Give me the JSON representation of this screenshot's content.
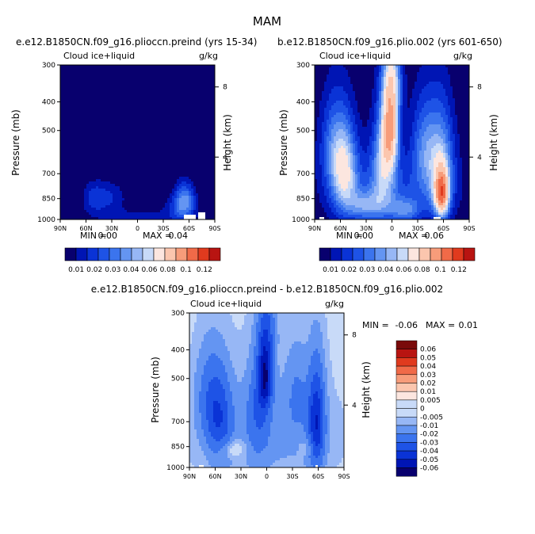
{
  "figure": {
    "title": "MAM"
  },
  "colors": {
    "palette": [
      "#08006e",
      "#0015b4",
      "#0a33d6",
      "#1e53e6",
      "#3b74ee",
      "#6495f2",
      "#97b7f5",
      "#c8daf8",
      "#fce6df",
      "#fbc6ae",
      "#f79c7a",
      "#f06a48",
      "#e03a1e",
      "#b81411",
      "#7a0a0a"
    ],
    "fill_missing": "#ffffff"
  },
  "chart_data": [
    {
      "type": "contour",
      "title": "e.e12.B1850CN.f09_g16.plioccn.preind (yrs 15-34)",
      "variable": "Cloud ice+liquid",
      "units": "g/kg",
      "xlabel": "",
      "ylabel": "Pressure (mb)",
      "y2label": "Height (km)",
      "x_ticks": [
        "90N",
        "60N",
        "30N",
        "0",
        "30S",
        "60S",
        "90S"
      ],
      "y_ticks": [
        "300",
        "400",
        "500",
        "700",
        "850",
        "1000"
      ],
      "y2_ticks": [
        "8",
        "4"
      ],
      "stats": {
        "min_label": "MIN =",
        "min": "0.00",
        "max_label": "MAX =",
        "max": "0.04"
      },
      "colorbar": {
        "orientation": "horizontal",
        "labels": [
          "0.01",
          "0.02",
          "0.03",
          "0.04",
          "0.06",
          "0.08",
          "0.1",
          "0.12"
        ]
      },
      "blobs": [
        {
          "lat": 50,
          "p": 845,
          "amp": 0.012,
          "sx": 10,
          "sp": 75
        },
        {
          "lat": 30,
          "p": 840,
          "amp": 0.009,
          "sx": 12,
          "sp": 70
        },
        {
          "lat": -55,
          "p": 850,
          "amp": 0.022,
          "sx": 8,
          "sp": 80
        },
        {
          "lat": -50,
          "p": 920,
          "amp": 0.012,
          "sx": 12,
          "sp": 70
        },
        {
          "lat": 0,
          "p": 980,
          "amp": 0.006,
          "sx": 40,
          "sp": 50
        }
      ],
      "missing": [
        {
          "lat_from": -55,
          "lat_to": -67,
          "p_from": 955,
          "p_to": 1000
        },
        {
          "lat_from": -72,
          "lat_to": -78,
          "p_from": 945,
          "p_to": 1000
        }
      ]
    },
    {
      "type": "contour",
      "title": "b.e12.B1850CN.f09_g16.plio.002 (yrs 601-650)",
      "variable": "Cloud ice+liquid",
      "units": "g/kg",
      "xlabel": "",
      "ylabel": "Pressure (mb)",
      "y2label": "Height (km)",
      "x_ticks": [
        "90N",
        "60N",
        "30N",
        "0",
        "30S",
        "60S",
        "90S"
      ],
      "y_ticks": [
        "300",
        "400",
        "500",
        "700",
        "850",
        "1000"
      ],
      "y2_ticks": [
        "8",
        "4"
      ],
      "stats": {
        "min_label": "MIN =",
        "min": "0.00",
        "max_label": "MAX =",
        "max": "0.06"
      },
      "colorbar": {
        "orientation": "horizontal",
        "labels": [
          "0.01",
          "0.02",
          "0.03",
          "0.04",
          "0.06",
          "0.08",
          "0.1",
          "0.12"
        ]
      },
      "blobs": [
        {
          "lat": 55,
          "p": 690,
          "amp": 0.034,
          "sx": 11,
          "sp": 170
        },
        {
          "lat": 68,
          "p": 560,
          "amp": 0.018,
          "sx": 12,
          "sp": 150
        },
        {
          "lat": 10,
          "p": 650,
          "amp": 0.028,
          "sx": 10,
          "sp": 180
        },
        {
          "lat": 2,
          "p": 490,
          "amp": 0.05,
          "sx": 7,
          "sp": 110
        },
        {
          "lat": 0,
          "p": 330,
          "amp": 0.03,
          "sx": 8,
          "sp": 70
        },
        {
          "lat": -58,
          "p": 820,
          "amp": 0.058,
          "sx": 6,
          "sp": 110
        },
        {
          "lat": -55,
          "p": 620,
          "amp": 0.03,
          "sx": 12,
          "sp": 180
        },
        {
          "lat": -35,
          "p": 560,
          "amp": 0.016,
          "sx": 10,
          "sp": 150
        },
        {
          "lat": 30,
          "p": 900,
          "amp": 0.02,
          "sx": 14,
          "sp": 70
        },
        {
          "lat": -15,
          "p": 930,
          "amp": 0.018,
          "sx": 12,
          "sp": 60
        },
        {
          "lat": 0,
          "p": 820,
          "amp": 0.014,
          "sx": 50,
          "sp": 160
        }
      ],
      "missing": [
        {
          "lat_from": 85,
          "lat_to": 78,
          "p_from": 985,
          "p_to": 1000
        },
        {
          "lat_from": -48,
          "lat_to": -56,
          "p_from": 975,
          "p_to": 1000
        }
      ]
    },
    {
      "type": "contour",
      "title": "e.e12.B1850CN.f09_g16.plioccn.preind - b.e12.B1850CN.f09_g16.plio.002",
      "variable": "Cloud ice+liquid",
      "units": "g/kg",
      "xlabel": "",
      "ylabel": "Pressure (mb)",
      "y2label": "Height (km)",
      "x_ticks": [
        "90N",
        "60N",
        "30N",
        "0",
        "30S",
        "60S",
        "90S"
      ],
      "y_ticks": [
        "300",
        "400",
        "500",
        "700",
        "850",
        "1000"
      ],
      "y2_ticks": [
        "8",
        "4"
      ],
      "stats": {
        "min_label": "MIN =",
        "min": "-0.06",
        "max_label": "MAX =",
        "max": "0.01"
      },
      "colorbar": {
        "orientation": "vertical",
        "labels": [
          "0.06",
          "0.05",
          "0.04",
          "0.03",
          "0.02",
          "0.01",
          "0.005",
          "0",
          "-0.005",
          "-0.01",
          "-0.02",
          "-0.03",
          "-0.04",
          "-0.05",
          "-0.06"
        ]
      },
      "blobs": [
        {
          "lat": 55,
          "p": 690,
          "amp": -0.026,
          "sx": 11,
          "sp": 170
        },
        {
          "lat": 68,
          "p": 560,
          "amp": -0.014,
          "sx": 12,
          "sp": 150
        },
        {
          "lat": 10,
          "p": 650,
          "amp": -0.018,
          "sx": 10,
          "sp": 180
        },
        {
          "lat": 2,
          "p": 490,
          "amp": -0.045,
          "sx": 6,
          "sp": 90
        },
        {
          "lat": -58,
          "p": 700,
          "amp": -0.04,
          "sx": 7,
          "sp": 200
        },
        {
          "lat": -35,
          "p": 560,
          "amp": -0.012,
          "sx": 10,
          "sp": 150
        },
        {
          "lat": 40,
          "p": 865,
          "amp": 0.012,
          "sx": 12,
          "sp": 45
        },
        {
          "lat": -48,
          "p": 850,
          "amp": 0.008,
          "sx": 6,
          "sp": 40
        },
        {
          "lat": 0,
          "p": 330,
          "amp": -0.02,
          "sx": 8,
          "sp": 70
        },
        {
          "lat": 0,
          "p": 780,
          "amp": -0.009,
          "sx": 60,
          "sp": 250
        }
      ],
      "missing": [
        {
          "lat_from": 80,
          "lat_to": 74,
          "p_from": 985,
          "p_to": 1000
        },
        {
          "lat_from": -56,
          "lat_to": -60,
          "p_from": 980,
          "p_to": 1000
        }
      ]
    }
  ]
}
